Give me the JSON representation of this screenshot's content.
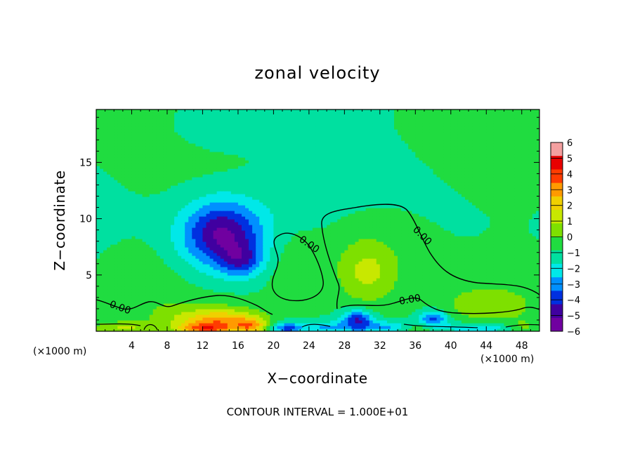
{
  "chart_data": {
    "type": "heatmap",
    "title": "zonal velocity",
    "xlabel": "X−coordinate",
    "ylabel": "Z−coordinate",
    "x_unit_left": "(×1000 m)",
    "x_unit_right": "(×1000 m)",
    "xlim": [
      0,
      50
    ],
    "ylim": [
      0,
      19.7
    ],
    "x_ticks": [
      4,
      8,
      12,
      16,
      20,
      24,
      28,
      32,
      36,
      40,
      44,
      48
    ],
    "y_ticks": [
      5,
      10,
      15
    ],
    "colorbar": {
      "ticks": [
        "6",
        "5",
        "4",
        "3",
        "2",
        "1",
        "0",
        "−1",
        "−2",
        "−3",
        "−4",
        "−5",
        "−6"
      ],
      "range": [
        -6,
        6
      ]
    },
    "contour_labels": [
      "0.00",
      "0.00",
      "0.00",
      "0.00"
    ],
    "footer": "CONTOUR INTERVAL = 1.000E+01",
    "features": [
      {
        "x": 14.2,
        "z": 8.6,
        "sx": 3.2,
        "sz": 2.1,
        "v": -4.4
      },
      {
        "x": 16.4,
        "z": 6.3,
        "sx": 1.6,
        "sz": 1.0,
        "v": -2.2
      },
      {
        "x": 14.0,
        "z": 18.6,
        "sx": 4.0,
        "sz": 1.6,
        "v": -1.0
      },
      {
        "x": 30.5,
        "z": 5.2,
        "sx": 2.4,
        "sz": 2.0,
        "v": 1.7
      },
      {
        "x": 31.0,
        "z": 7.5,
        "sx": 5.0,
        "sz": 3.0,
        "v": 0.8
      },
      {
        "x": 22.5,
        "z": 5.5,
        "sx": 2.0,
        "sz": 2.3,
        "v": 0.9
      },
      {
        "x": 44.0,
        "z": 2.5,
        "sx": 4.0,
        "sz": 1.3,
        "v": 1.0
      },
      {
        "x": 4.0,
        "z": 4.8,
        "sx": 3.0,
        "sz": 2.0,
        "v": 0.5
      },
      {
        "x": 8.5,
        "z": 1.5,
        "sx": 2.0,
        "sz": 0.9,
        "v": 0.6
      },
      {
        "x": 14.0,
        "z": 0.9,
        "sx": 3.0,
        "sz": 0.8,
        "v": 3.6
      },
      {
        "x": 17.5,
        "z": 0.5,
        "sx": 1.2,
        "sz": 0.5,
        "v": 2.5
      },
      {
        "x": 12.0,
        "z": 0.25,
        "sx": 2.0,
        "sz": 0.35,
        "v": 2.5
      },
      {
        "x": 3.0,
        "z": 0.3,
        "sx": 2.5,
        "sz": 0.4,
        "v": 1.5
      },
      {
        "x": 21.5,
        "z": 0.3,
        "sx": 1.2,
        "sz": 0.4,
        "v": -3.0
      },
      {
        "x": 29.5,
        "z": 1.1,
        "sx": 1.2,
        "sz": 0.6,
        "v": -3.5
      },
      {
        "x": 33.0,
        "z": 0.4,
        "sx": 2.5,
        "sz": 0.4,
        "v": -2.0
      },
      {
        "x": 38.0,
        "z": 1.2,
        "sx": 1.2,
        "sz": 0.5,
        "v": -3.0
      },
      {
        "x": 44.0,
        "z": 0.3,
        "sx": 4.0,
        "sz": 0.4,
        "v": -2.0
      },
      {
        "x": 36.0,
        "z": 0.3,
        "sx": 1.5,
        "sz": 0.4,
        "v": 1.5
      },
      {
        "x": 48.0,
        "z": 0.35,
        "sx": 1.5,
        "sz": 0.4,
        "v": 1.5
      },
      {
        "x": 26.0,
        "z": 0.35,
        "sx": 2.0,
        "sz": 0.4,
        "v": -1.8
      }
    ],
    "background_value": -0.9
  },
  "colors": {
    "colorbar_bins": [
      "#f4a0a0",
      "#e80000",
      "#ff3c00",
      "#ff9a00",
      "#f0d000",
      "#c8e800",
      "#7ee000",
      "#20dc40",
      "#00e0a0",
      "#00e8e8",
      "#0090ff",
      "#0030e0",
      "#4000a0",
      "#7000a0"
    ]
  }
}
